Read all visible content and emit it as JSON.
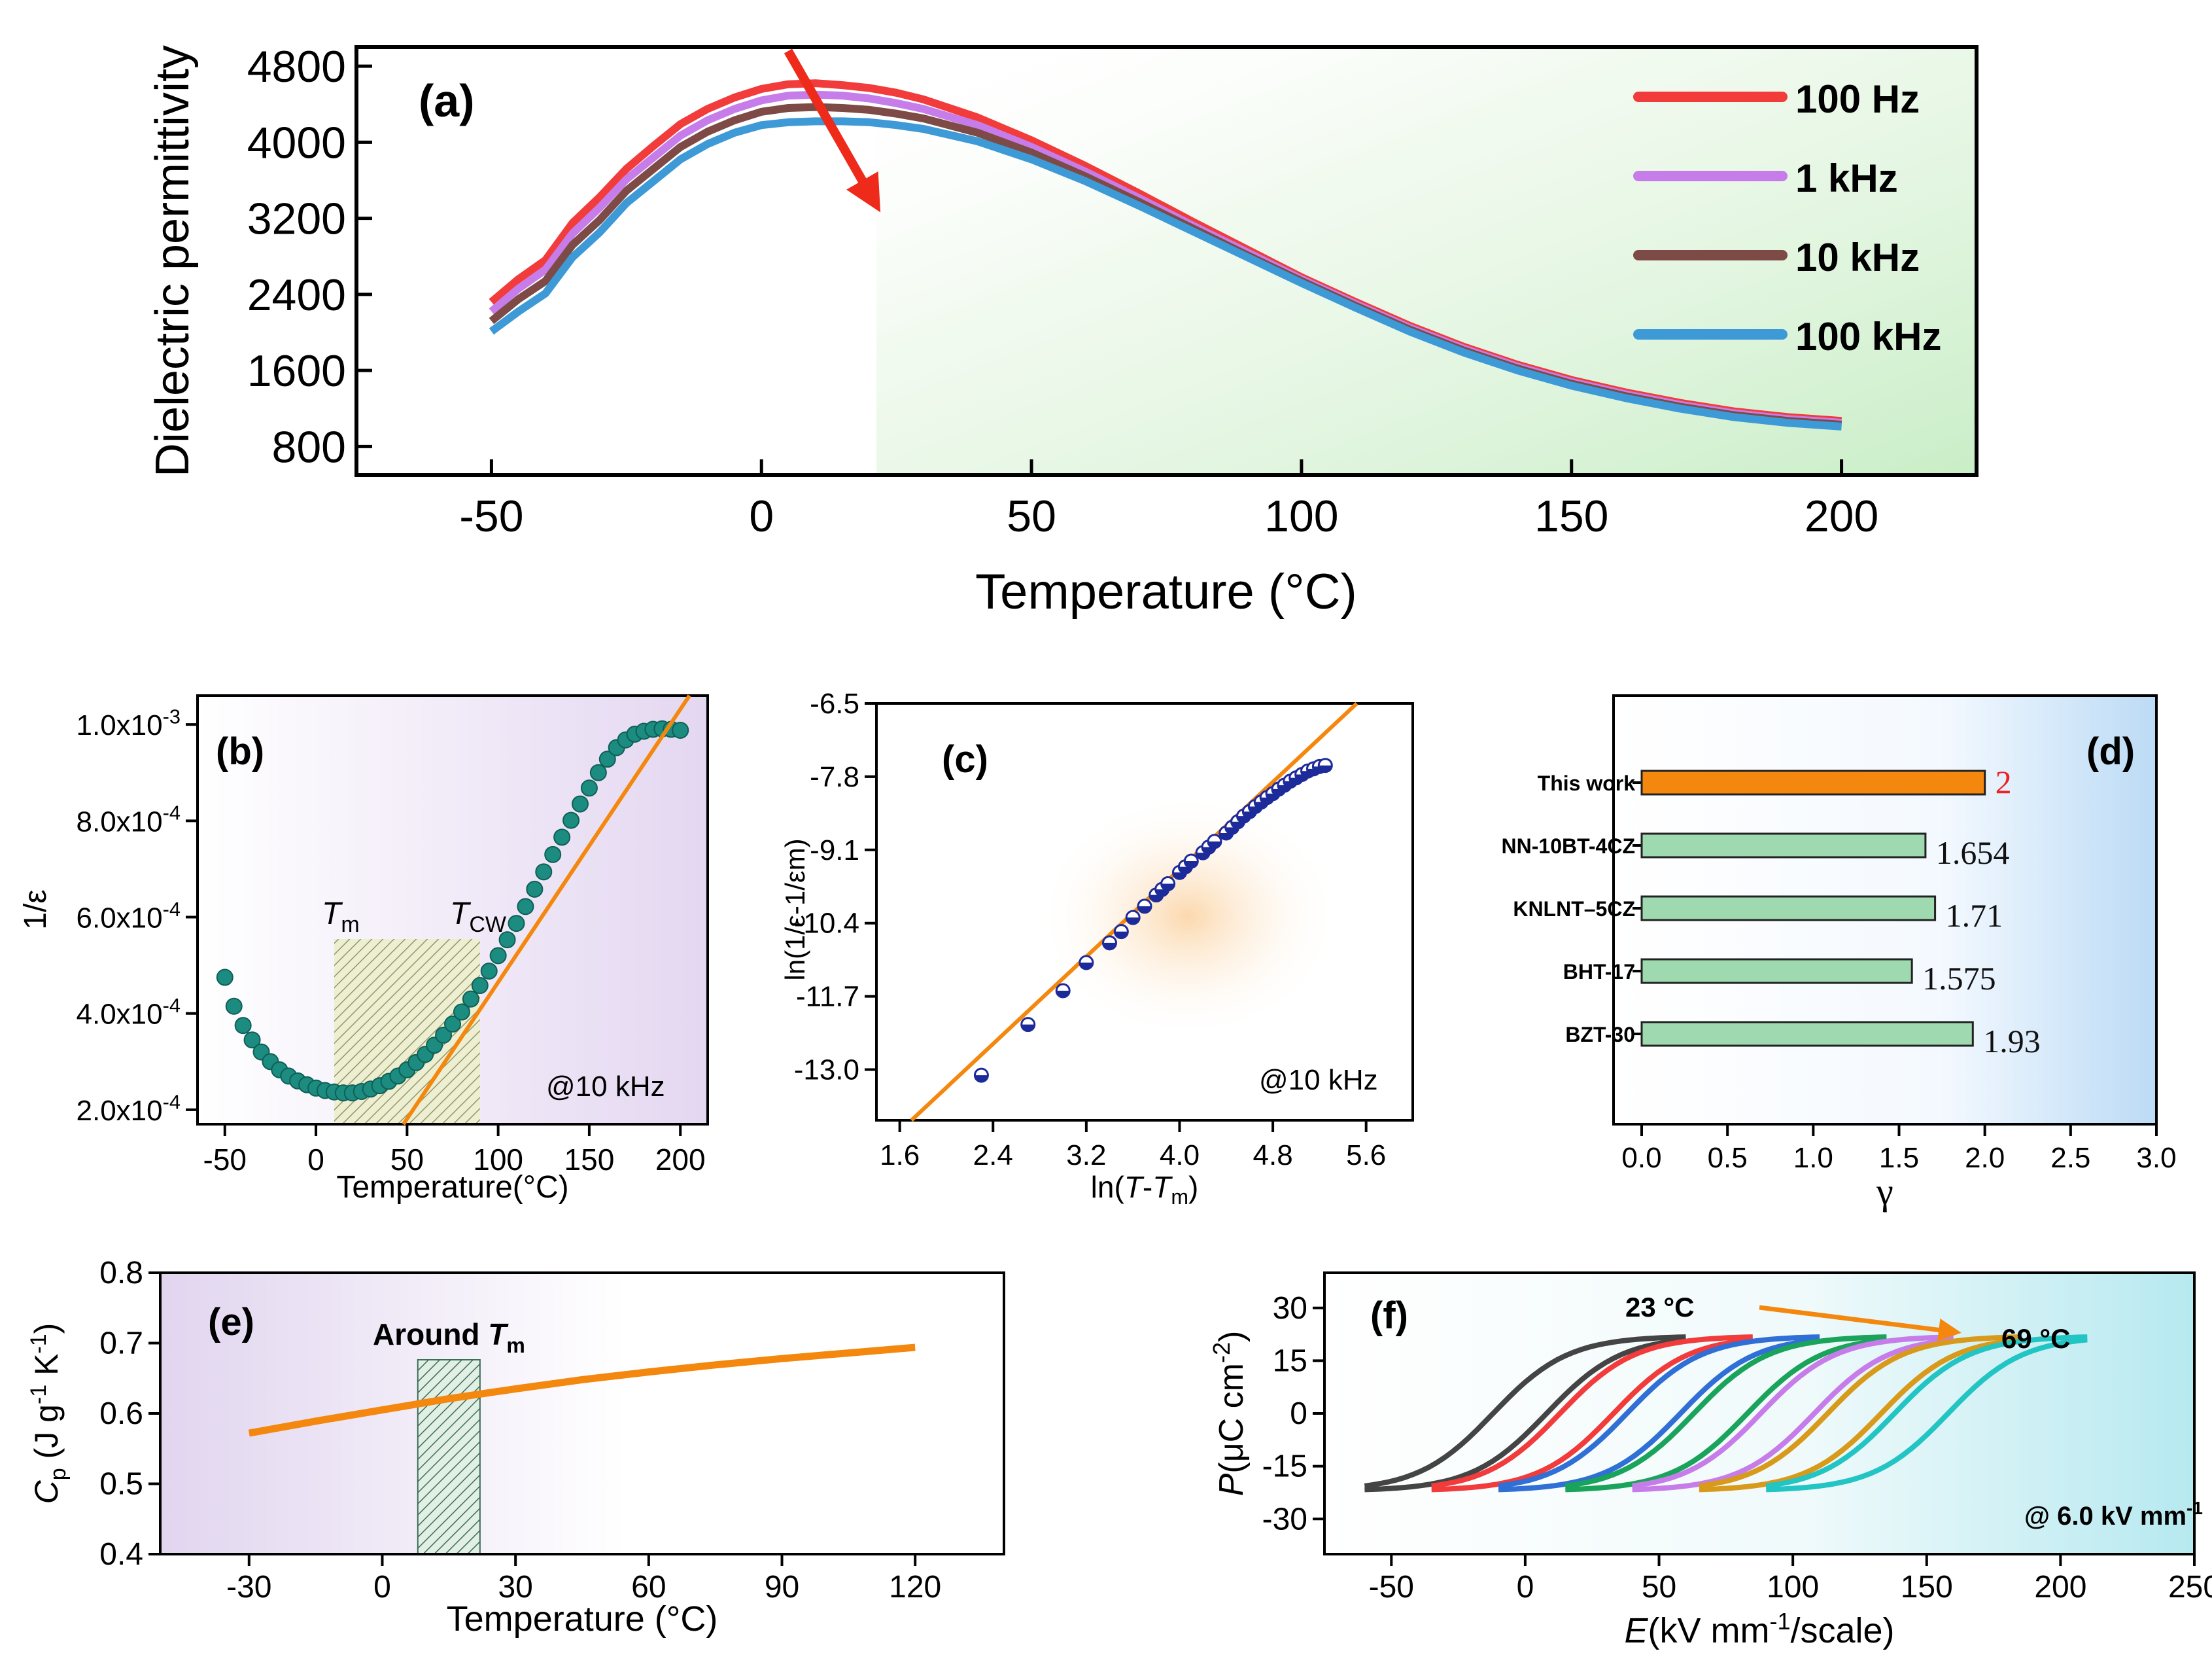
{
  "figure": "dielectric and ferroelectric characterization",
  "colors": {
    "100hz": "#f23b3b",
    "1khz": "#c77de9",
    "10khz": "#7d4a46",
    "100khz": "#3d9ad6",
    "orange": "#f4870d",
    "teal": "#1c8c80",
    "bar_green": "#9ed9b0",
    "navy": "#1c2a9a"
  },
  "chart_data": [
    {
      "id": "a",
      "type": "line",
      "panel_label": "(a)",
      "xlabel": "Temperature (°C)",
      "ylabel": "Dielectric permittivity",
      "xlim": [
        -75,
        225
      ],
      "ylim": [
        500,
        5000
      ],
      "xticks": [
        "-50",
        "0",
        "50",
        "100",
        "150",
        "200"
      ],
      "yticks": [
        "800",
        "1600",
        "2400",
        "3200",
        "4000",
        "4800"
      ],
      "legend": [
        "100 Hz",
        "1 kHz",
        "10 kHz",
        "100 kHz"
      ],
      "legend_position": "top-right",
      "x": [
        -50,
        -45,
        -40,
        -35,
        -30,
        -25,
        -20,
        -15,
        -10,
        -5,
        0,
        5,
        10,
        15,
        20,
        25,
        30,
        40,
        50,
        60,
        70,
        80,
        90,
        100,
        110,
        120,
        130,
        140,
        150,
        160,
        170,
        180,
        190,
        200
      ],
      "series": [
        {
          "name": "100 Hz",
          "values": [
            2320,
            2560,
            2760,
            3150,
            3420,
            3720,
            3960,
            4190,
            4350,
            4470,
            4560,
            4610,
            4620,
            4600,
            4570,
            4520,
            4450,
            4260,
            4020,
            3750,
            3460,
            3160,
            2870,
            2580,
            2320,
            2070,
            1850,
            1660,
            1500,
            1370,
            1260,
            1170,
            1110,
            1070
          ]
        },
        {
          "name": "1 kHz",
          "values": [
            2220,
            2460,
            2660,
            3040,
            3310,
            3610,
            3840,
            4070,
            4230,
            4350,
            4440,
            4490,
            4500,
            4490,
            4460,
            4410,
            4350,
            4180,
            3950,
            3690,
            3410,
            3120,
            2840,
            2560,
            2300,
            2050,
            1830,
            1640,
            1480,
            1350,
            1240,
            1150,
            1090,
            1050
          ]
        },
        {
          "name": "10 kHz",
          "values": [
            2120,
            2350,
            2540,
            2920,
            3180,
            3490,
            3720,
            3950,
            4110,
            4230,
            4320,
            4360,
            4370,
            4360,
            4340,
            4300,
            4250,
            4100,
            3890,
            3640,
            3370,
            3090,
            2810,
            2540,
            2280,
            2030,
            1810,
            1620,
            1460,
            1330,
            1220,
            1130,
            1070,
            1030
          ]
        },
        {
          "name": "100 kHz",
          "values": [
            2010,
            2220,
            2410,
            2790,
            3050,
            3360,
            3590,
            3820,
            3980,
            4100,
            4180,
            4210,
            4220,
            4220,
            4210,
            4180,
            4140,
            4010,
            3820,
            3590,
            3330,
            3060,
            2790,
            2520,
            2260,
            2010,
            1790,
            1600,
            1440,
            1310,
            1200,
            1110,
            1050,
            1010
          ]
        }
      ],
      "annotation": "arrow indicating decreasing permittivity with increasing frequency"
    },
    {
      "id": "b",
      "type": "scatter",
      "panel_label": "(b)",
      "xlabel": "Temperature(°C)",
      "ylabel": "1/ε",
      "xlim": [
        -65,
        215
      ],
      "ylim": [
        0.00017,
        0.00106
      ],
      "xticks": [
        "-50",
        "0",
        "50",
        "100",
        "150",
        "200"
      ],
      "yticks": [
        "2.0x10-4",
        "4.0x10-4",
        "6.0x10-4",
        "8.0x10-4",
        "1.0x10-3"
      ],
      "annotation_text": "@10 kHz",
      "tm_label": "T",
      "tm_sub": "m",
      "tcw_label": "T",
      "tcw_sub": "CW",
      "shaded_region": [
        10,
        90
      ],
      "x": [
        -50,
        -45,
        -40,
        -35,
        -30,
        -25,
        -20,
        -15,
        -10,
        -5,
        0,
        5,
        10,
        15,
        20,
        25,
        30,
        35,
        40,
        45,
        50,
        55,
        60,
        65,
        70,
        75,
        80,
        85,
        90,
        95,
        100,
        105,
        110,
        115,
        120,
        125,
        130,
        135,
        140,
        145,
        150,
        155,
        160,
        165,
        170,
        175,
        180,
        185,
        190,
        195,
        200
      ],
      "values": [
        0.000475,
        0.000415,
        0.000375,
        0.000345,
        0.00032,
        0.0003,
        0.000283,
        0.00027,
        0.00026,
        0.000252,
        0.000245,
        0.00024,
        0.000237,
        0.000235,
        0.000235,
        0.000238,
        0.000243,
        0.00025,
        0.000259,
        0.00027,
        0.000283,
        0.000298,
        0.000315,
        0.000334,
        0.000355,
        0.000378,
        0.000403,
        0.00043,
        0.000458,
        0.000488,
        0.00052,
        0.000553,
        0.000587,
        0.000622,
        0.000658,
        0.000694,
        0.00073,
        0.000766,
        0.000801,
        0.000835,
        0.000868,
        0.0009,
        0.000928,
        0.000952,
        0.000968,
        0.00098,
        0.000986,
        0.00099,
        0.000991,
        0.00099,
        0.000988
      ],
      "fit_line": {
        "x": [
          48,
          205
        ],
        "y": [
          0.00017,
          0.00106
        ]
      }
    },
    {
      "id": "c",
      "type": "scatter",
      "panel_label": "(c)",
      "xlabel_parts": [
        "ln(",
        "T",
        "-",
        "T",
        "m",
        ")"
      ],
      "ylabel": "ln(1/ε-1/εm)",
      "xlim": [
        1.4,
        6.0
      ],
      "ylim": [
        -13.9,
        -6.5
      ],
      "xticks": [
        "1.6",
        "2.4",
        "3.2",
        "4.0",
        "4.8",
        "5.6"
      ],
      "yticks": [
        "-13.0",
        "-11.7",
        "-10.4",
        "-9.1",
        "-7.8",
        "-6.5"
      ],
      "annotation_text": "@10 kHz",
      "x": [
        2.3,
        2.7,
        3.0,
        3.2,
        3.4,
        3.5,
        3.6,
        3.7,
        3.8,
        3.85,
        3.9,
        4.0,
        4.05,
        4.1,
        4.2,
        4.25,
        4.3,
        4.4,
        4.45,
        4.5,
        4.55,
        4.6,
        4.65,
        4.7,
        4.75,
        4.8,
        4.85,
        4.9,
        4.95,
        5.0,
        5.05,
        5.1,
        5.15,
        5.2,
        5.25
      ],
      "values": [
        -13.1,
        -12.2,
        -11.6,
        -11.1,
        -10.75,
        -10.55,
        -10.3,
        -10.1,
        -9.9,
        -9.8,
        -9.7,
        -9.5,
        -9.4,
        -9.3,
        -9.15,
        -9.05,
        -8.95,
        -8.8,
        -8.7,
        -8.6,
        -8.5,
        -8.42,
        -8.33,
        -8.25,
        -8.17,
        -8.1,
        -8.02,
        -7.95,
        -7.88,
        -7.82,
        -7.76,
        -7.7,
        -7.66,
        -7.62,
        -7.6
      ],
      "fit_line": {
        "x": [
          1.7,
          5.52
        ],
        "y": [
          -13.9,
          -6.5
        ]
      }
    },
    {
      "id": "d",
      "type": "bar",
      "panel_label": "(d)",
      "xlabel": "γ",
      "xlim": [
        0,
        3.0
      ],
      "xticks": [
        "0.0",
        "0.5",
        "1.0",
        "1.5",
        "2.0",
        "2.5",
        "3.0"
      ],
      "categories": [
        "This work",
        "NN-10BT-4CZ",
        "KNLNT–5CZ",
        "BHT-17",
        "BZT-30"
      ],
      "values": [
        2,
        1.654,
        1.71,
        1.575,
        1.93
      ],
      "value_labels": [
        "2",
        "1.654",
        "1.71",
        "1.575",
        "1.93"
      ]
    },
    {
      "id": "e",
      "type": "line",
      "panel_label": "(e)",
      "xlabel": "Temperature (°C)",
      "ylabel_parts": [
        "C",
        "p",
        " (J g",
        "-1",
        " K",
        "-1",
        ")"
      ],
      "xlim": [
        -50,
        140
      ],
      "ylim": [
        0.4,
        0.8
      ],
      "xticks": [
        "-30",
        "0",
        "30",
        "60",
        "90",
        "120"
      ],
      "yticks": [
        "0.4",
        "0.5",
        "0.6",
        "0.7",
        "0.8"
      ],
      "annotation_text": "Around ",
      "annotation_T": "T",
      "annotation_sub": "m",
      "shaded_region": [
        8,
        22
      ],
      "x": [
        -30,
        -15,
        0,
        15,
        30,
        45,
        60,
        75,
        90,
        105,
        120
      ],
      "values": [
        0.572,
        0.589,
        0.605,
        0.621,
        0.635,
        0.648,
        0.659,
        0.669,
        0.678,
        0.686,
        0.694
      ]
    },
    {
      "id": "f",
      "type": "line",
      "panel_label": "(f)",
      "xlabel_parts": [
        "E",
        "(kV mm",
        "-1",
        "/scale)"
      ],
      "ylabel_parts": [
        "P",
        "(μC cm",
        "-2",
        ")"
      ],
      "xlim": [
        -75,
        250
      ],
      "ylim": [
        -40,
        40
      ],
      "xticks": [
        "-50",
        "0",
        "50",
        "100",
        "150",
        "200",
        "250"
      ],
      "yticks": [
        "-30",
        "-15",
        "0",
        "15",
        "30"
      ],
      "start_label": "23 °C",
      "end_label": "69 °C",
      "field_label_parts": [
        "@ 6.0 kV mm",
        "-1"
      ],
      "loops": [
        {
          "name": "23 °C",
          "offset": 0,
          "color": "#444444"
        },
        {
          "name": "loop 2",
          "offset": 25,
          "color": "#f23b3b"
        },
        {
          "name": "loop 3",
          "offset": 50,
          "color": "#2f6fd6"
        },
        {
          "name": "loop 4",
          "offset": 75,
          "color": "#1aa35a"
        },
        {
          "name": "loop 5",
          "offset": 100,
          "color": "#c77de9"
        },
        {
          "name": "loop 6",
          "offset": 125,
          "color": "#d89a1a"
        },
        {
          "name": "69 °C",
          "offset": 150,
          "color": "#22c4c4"
        }
      ]
    }
  ]
}
